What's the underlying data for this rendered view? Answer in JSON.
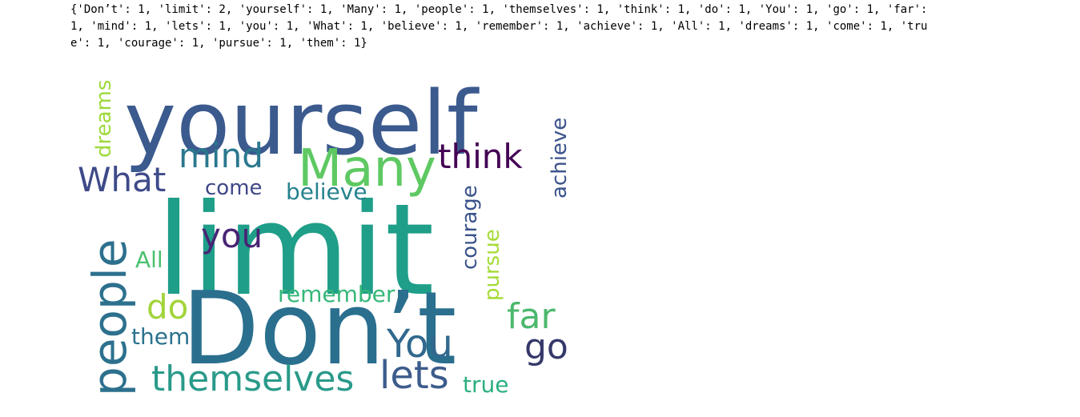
{
  "output": {
    "lines": [
      "{'Don’t': 1, 'limit': 2, 'yourself': 1, 'Many': 1, 'people': 1, 'themselves': 1, 'think': 1, 'do': 1, 'You': 1, 'go': 1, 'far':",
      "1, 'mind': 1, 'lets': 1, 'you': 1, 'What': 1, 'believe': 1, 'remember': 1, 'achieve': 1, 'All': 1, 'dreams': 1, 'come': 1, 'tru",
      "e': 1, 'courage': 1, 'pursue': 1, 'them': 1}"
    ]
  },
  "wordcloud": {
    "words": [
      {
        "text": "limit",
        "color": "#1f9e89"
      },
      {
        "text": "yourself",
        "color": "#3b5a8e"
      },
      {
        "text": "Don’t",
        "color": "#2a6f8e"
      },
      {
        "text": "people",
        "color": "#2d708e"
      },
      {
        "text": "Many",
        "color": "#5ec962"
      },
      {
        "text": "themselves",
        "color": "#2a9a8a"
      },
      {
        "text": "think",
        "color": "#440154"
      },
      {
        "text": "mind",
        "color": "#2a788e"
      },
      {
        "text": "What",
        "color": "#3e4a89"
      },
      {
        "text": "lets",
        "color": "#3d5c8c"
      },
      {
        "text": "You",
        "color": "#31688e"
      },
      {
        "text": "go",
        "color": "#35386a"
      },
      {
        "text": "far",
        "color": "#4cb86e"
      },
      {
        "text": "do",
        "color": "#a2d43a"
      },
      {
        "text": "you",
        "color": "#482475"
      },
      {
        "text": "believe",
        "color": "#26828e"
      },
      {
        "text": "come",
        "color": "#3f4788"
      },
      {
        "text": "remember",
        "color": "#35b779"
      },
      {
        "text": "All",
        "color": "#4ac16d"
      },
      {
        "text": "them",
        "color": "#2c728e"
      },
      {
        "text": "true",
        "color": "#2bb07f"
      },
      {
        "text": "achieve",
        "color": "#3b528b"
      },
      {
        "text": "dreams",
        "color": "#9dd93b"
      },
      {
        "text": "courage",
        "color": "#3a538b"
      },
      {
        "text": "pursue",
        "color": "#a5db36"
      }
    ]
  }
}
